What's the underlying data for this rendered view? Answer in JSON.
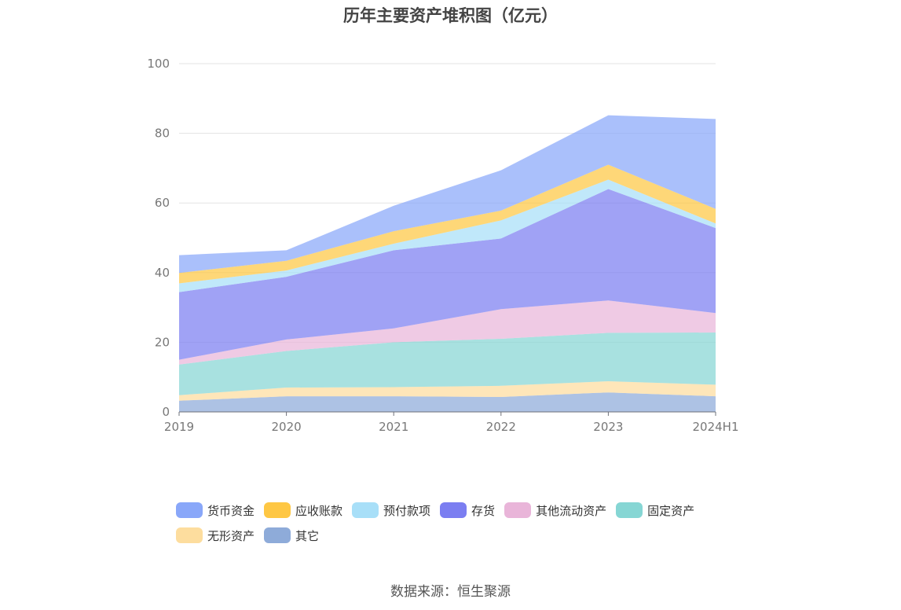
{
  "chart_data": {
    "type": "area",
    "stacked": true,
    "title": "历年主要资产堆积图（亿元）",
    "x": [
      "2019",
      "2020",
      "2021",
      "2022",
      "2023",
      "2024H1"
    ],
    "ylim": [
      0,
      100
    ],
    "yticks": [
      0,
      20,
      40,
      60,
      80,
      100
    ],
    "grid": true,
    "legend_position": "bottom",
    "series": [
      {
        "name": "其它",
        "color": "#8eabd9",
        "values": [
          3.2,
          4.5,
          4.5,
          4.3,
          5.6,
          4.5
        ]
      },
      {
        "name": "无形资产",
        "color": "#fddd9e",
        "values": [
          1.6,
          2.5,
          2.6,
          3.2,
          3.2,
          3.3
        ]
      },
      {
        "name": "固定资产",
        "color": "#86d6d4",
        "values": [
          8.8,
          10.5,
          12.9,
          13.5,
          13.9,
          15.0
        ]
      },
      {
        "name": "其他流动资产",
        "color": "#e9b5d9",
        "values": [
          1.4,
          3.3,
          4.0,
          8.5,
          9.3,
          5.6
        ]
      },
      {
        "name": "存货",
        "color": "#7b7ef1",
        "values": [
          19.4,
          18.0,
          22.4,
          20.3,
          32.0,
          24.4
        ]
      },
      {
        "name": "预付款项",
        "color": "#a8dff8",
        "values": [
          2.5,
          1.8,
          1.9,
          5.2,
          2.7,
          1.3
        ]
      },
      {
        "name": "应收账款",
        "color": "#fec744",
        "values": [
          3.0,
          2.8,
          3.6,
          2.8,
          4.3,
          4.2
        ]
      },
      {
        "name": "货币资金",
        "color": "#89a7f9",
        "values": [
          5.1,
          3.0,
          7.3,
          11.6,
          14.2,
          25.8
        ]
      }
    ]
  },
  "legend": {
    "items": [
      {
        "label": "货币资金",
        "color": "#89a7f9"
      },
      {
        "label": "应收账款",
        "color": "#fec744"
      },
      {
        "label": "预付款项",
        "color": "#a8dff8"
      },
      {
        "label": "存货",
        "color": "#7b7ef1"
      },
      {
        "label": "其他流动资产",
        "color": "#e9b5d9"
      },
      {
        "label": "固定资产",
        "color": "#86d6d4"
      },
      {
        "label": "无形资产",
        "color": "#fddd9e"
      },
      {
        "label": "其它",
        "color": "#8eabd9"
      }
    ]
  },
  "footer": {
    "source": "数据来源：恒生聚源"
  }
}
